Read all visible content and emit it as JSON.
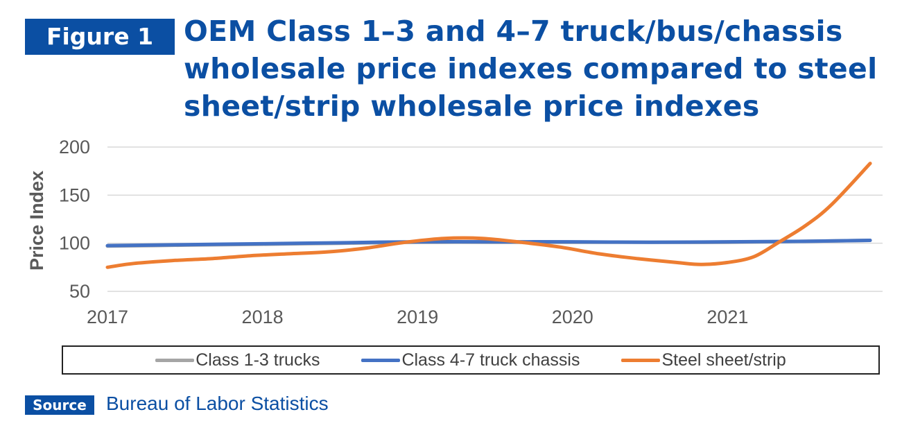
{
  "figure_label": "Figure 1",
  "title_lines": [
    "OEM Class 1–3 and 4–7 truck/bus/chassis",
    "wholesale price indexes compared to steel",
    "sheet/strip wholesale price indexes"
  ],
  "source_label": "Source",
  "source_text": "Bureau of Labor Statistics",
  "colors": {
    "brand_blue": "#0b4fa3"
  },
  "chart_data": {
    "type": "line",
    "title": "OEM Class 1–3 and 4–7 truck/bus/chassis wholesale price indexes compared to steel sheet/strip wholesale price indexes",
    "xlabel": "",
    "ylabel": "Price Index",
    "xlim": [
      2017,
      2022
    ],
    "ylim": [
      50,
      200
    ],
    "x_ticks": [
      "2017",
      "2018",
      "2019",
      "2020",
      "2021"
    ],
    "y_ticks": [
      "200",
      "150",
      "100",
      "50"
    ],
    "grid": "horizontal",
    "legend_position": "bottom",
    "series": [
      {
        "name": "Class 1-3 trucks",
        "color": "#a5a5a5",
        "x": [
          2017.0,
          2017.5,
          2018.0,
          2018.5,
          2019.0,
          2019.5,
          2020.0,
          2020.5,
          2021.0,
          2021.5,
          2021.92
        ],
        "y": [
          97,
          98,
          99,
          100,
          101,
          101,
          101,
          101,
          101,
          102,
          103
        ]
      },
      {
        "name": "Class 4-7 truck chassis",
        "color": "#4472c4",
        "x": [
          2017.0,
          2017.5,
          2018.0,
          2018.5,
          2019.0,
          2019.5,
          2020.0,
          2020.5,
          2021.0,
          2021.5,
          2021.92
        ],
        "y": [
          97.5,
          98.5,
          99.5,
          100.5,
          101.5,
          101.5,
          101.5,
          101,
          101.5,
          102,
          103
        ]
      },
      {
        "name": "Steel sheet/strip",
        "color": "#ed7d31",
        "x": [
          2017.0,
          2017.17,
          2017.42,
          2017.67,
          2017.92,
          2018.17,
          2018.42,
          2018.67,
          2018.92,
          2019.17,
          2019.42,
          2019.67,
          2019.92,
          2020.17,
          2020.42,
          2020.67,
          2020.83,
          2021.0,
          2021.17,
          2021.33,
          2021.5,
          2021.67,
          2021.92
        ],
        "y": [
          75,
          79,
          82,
          84,
          87,
          89,
          91,
          95,
          101,
          105,
          105,
          101,
          96,
          89,
          84,
          80,
          78,
          80,
          86,
          101,
          118,
          140,
          183
        ]
      }
    ]
  }
}
